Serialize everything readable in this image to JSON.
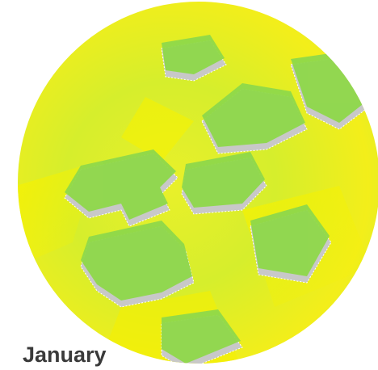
{
  "label": "January"
}
